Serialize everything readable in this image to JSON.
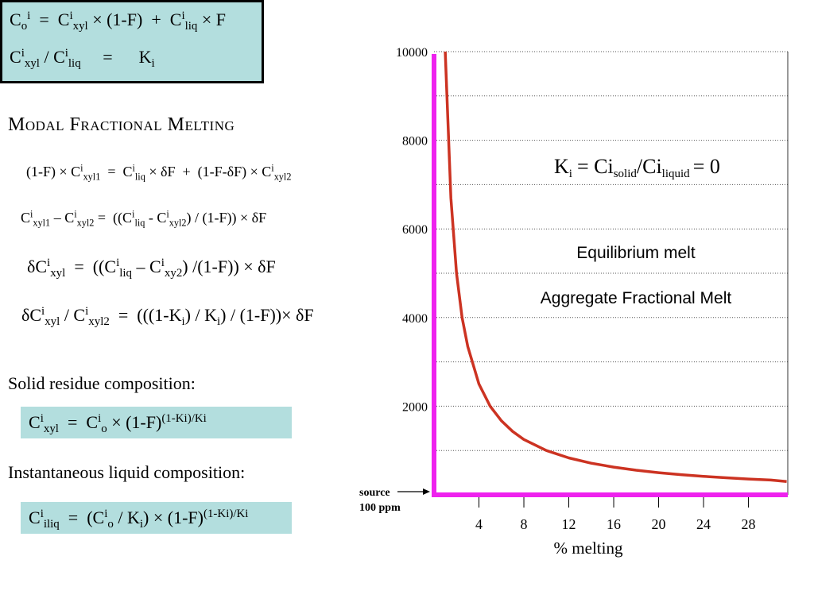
{
  "eqbox": {
    "eq1": {
      "a": "C",
      "a_sub": "o",
      "a_sup": "i",
      "b": "=",
      "c": "C",
      "c_sup": "i",
      "c_sub": "xyl",
      "d": "× (1-F)",
      "e": "+",
      "f": "C",
      "f_sup": "i",
      "f_sub": "liq",
      "g": "× F"
    },
    "eq2": {
      "a": "C",
      "a_sup": "i",
      "a_sub": "xyl",
      "b": "/ C",
      "b_sup": "i",
      "b_sub": "liq",
      "c": "=",
      "d": "K",
      "d_sub": "i"
    }
  },
  "heading": "Modal Fractional Melting",
  "modal": {
    "l1": {
      "a": "(1-F) × C",
      "a_sup": "i",
      "a_sub": "xyl1",
      "b": "=",
      "c": "C",
      "c_sup": "i",
      "c_sub": "liq",
      "d": "× δF",
      "e": "+",
      "f": "(1-F-δF) × C",
      "f_sup": "i",
      "f_sub": "xyl2"
    },
    "l2": {
      "a": "C",
      "a_sup": "i",
      "a_sub": "xyl1",
      "b": "– C",
      "b_sup": "i",
      "b_sub": "xyl2",
      "c": "=",
      "d": "((C",
      "d_sup": "i",
      "d_sub": "liq",
      "e": "- C",
      "e_sup": "i",
      "e_sub": "xyl2",
      "f": ") / (1-F)) × δF"
    },
    "l3": {
      "a": "δC",
      "a_sup": "i",
      "a_sub": "xyl",
      "b": "=",
      "c": "((C",
      "c_sup": "i",
      "c_sub": "liq",
      "d": "– C",
      "d_sup": "i",
      "d_sub": "xy2",
      "e": ") /(1-F)) × δF"
    },
    "l4": {
      "a": "δC",
      "a_sup": "i",
      "a_sub": "xyl",
      "b": "/ C",
      "b_sup": "i",
      "b_sub": "xyl2",
      "c": "=",
      "d": "(((1-K",
      "d_sub": "i",
      "e": ") / K",
      "e_sub": "i",
      "f": ") / (1-F))× δF"
    }
  },
  "solid": {
    "label": "Solid residue composition:",
    "f": {
      "a": "C",
      "a_sup": "i",
      "a_sub": "xyl",
      "b": "=",
      "c": "C",
      "c_sup": "i",
      "c_sub": "o",
      "d": "× (1-F)",
      "d_sup": "(1-Ki)/Ki"
    }
  },
  "liquid": {
    "label": "Instantaneous liquid composition:",
    "f": {
      "a": "C",
      "a_sup": "i",
      "a_sub": "iliq",
      "b": "=",
      "c": "(C",
      "c_sup": "i",
      "c_sub": "o",
      "d": "/ K",
      "d_sub": "i",
      "e": ") × (1-F)",
      "e_sup": "(1-Ki)/Ki"
    }
  },
  "colors": {
    "box_fill": "#b3dede",
    "curve": "#cc3322",
    "axis_highlight": "#ee22ee"
  },
  "chart_data": {
    "type": "line",
    "xlabel": "% melting",
    "xlim": [
      0,
      31.5
    ],
    "ylim": [
      0,
      10000
    ],
    "x_ticks": [
      4,
      8,
      12,
      16,
      20,
      24,
      28
    ],
    "y_ticks": [
      2000,
      4000,
      6000,
      8000,
      10000
    ],
    "grid": "dotted horizontal",
    "annotations": {
      "ki_label": {
        "a": "K",
        "a_sub": "i",
        "b": "= Ci",
        "b_sub": "solid",
        "c": "/Ci",
        "c_sub": "liquid",
        "d": "= 0"
      },
      "equilibrium": "Equilibrium melt",
      "aggregate": "Aggregate Fractional Melt",
      "source_l1": "source",
      "source_l2": "100 ppm"
    },
    "series": [
      {
        "name": "",
        "x": [
          1.0,
          1.5,
          2,
          2.5,
          3,
          4,
          5,
          6,
          7,
          8,
          10,
          12,
          14,
          16,
          18,
          20,
          22,
          24,
          26,
          28,
          30,
          31.4
        ],
        "y": [
          10000,
          6700,
          5000,
          4000,
          3350,
          2500,
          2000,
          1670,
          1430,
          1250,
          1000,
          833,
          714,
          625,
          556,
          500,
          455,
          417,
          385,
          357,
          333,
          300
        ]
      }
    ]
  }
}
